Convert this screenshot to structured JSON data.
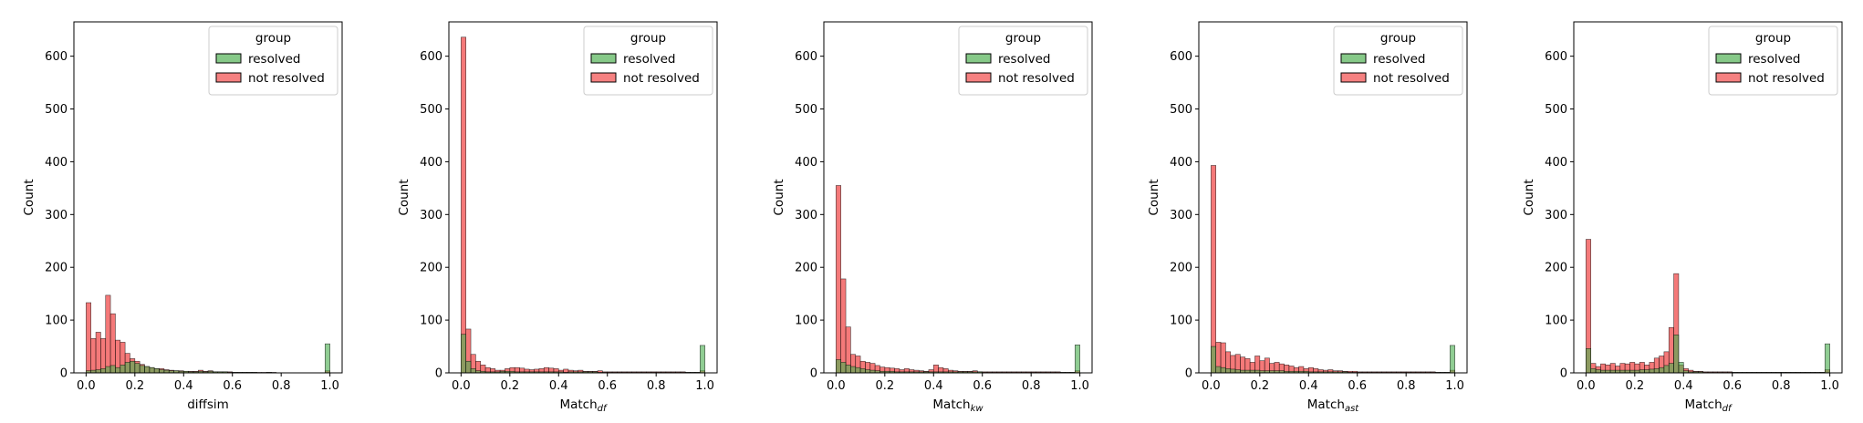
{
  "legend": {
    "title": "group",
    "entries": [
      {
        "label": "resolved",
        "color": "#4caf50"
      },
      {
        "label": "not resolved",
        "color": "#f04545"
      }
    ]
  },
  "colors": {
    "resolved": "#4caf50",
    "not_resolved": "#f04545",
    "overlap": "#7f6f1f",
    "edge": "#000000"
  },
  "chart_data": [
    {
      "type": "histogram",
      "xlabel": "diffsim",
      "ylabel": "Count",
      "xlim": [
        -0.05,
        1.05
      ],
      "ylim": [
        0,
        665
      ],
      "xticks": [
        "0.0",
        "0.2",
        "0.4",
        "0.6",
        "0.8",
        "1.0"
      ],
      "yticks": [
        "0",
        "100",
        "200",
        "300",
        "400",
        "500",
        "600"
      ],
      "bin_width": 0.02,
      "bin_start": 0.0,
      "series": [
        {
          "name": "resolved",
          "values": [
            4,
            5,
            6,
            8,
            12,
            14,
            10,
            15,
            20,
            22,
            18,
            14,
            12,
            10,
            8,
            6,
            5,
            4,
            4,
            3,
            3,
            2,
            2,
            3,
            2,
            3,
            2,
            2,
            2,
            1,
            1,
            1,
            1,
            1,
            1,
            0,
            0,
            1,
            0,
            0,
            0,
            0,
            0,
            0,
            0,
            0,
            0,
            0,
            0,
            55
          ]
        },
        {
          "name": "not resolved",
          "values": [
            133,
            65,
            77,
            65,
            147,
            112,
            62,
            58,
            37,
            27,
            22,
            16,
            12,
            10,
            8,
            8,
            6,
            5,
            4,
            4,
            3,
            3,
            3,
            5,
            3,
            4,
            2,
            2,
            2,
            2,
            1,
            1,
            1,
            1,
            1,
            1,
            1,
            1,
            1,
            0,
            0,
            0,
            0,
            0,
            0,
            0,
            0,
            0,
            0,
            4
          ]
        }
      ]
    },
    {
      "type": "histogram",
      "xlabel": "Match",
      "xlabel_sub": "df",
      "ylabel": "Count",
      "xlim": [
        -0.05,
        1.05
      ],
      "ylim": [
        0,
        665
      ],
      "xticks": [
        "0.0",
        "0.2",
        "0.4",
        "0.6",
        "0.8",
        "1.0"
      ],
      "yticks": [
        "0",
        "100",
        "200",
        "300",
        "400",
        "500",
        "600"
      ],
      "bin_width": 0.02,
      "bin_start": 0.0,
      "series": [
        {
          "name": "resolved",
          "values": [
            73,
            22,
            8,
            4,
            3,
            2,
            2,
            2,
            3,
            3,
            3,
            2,
            2,
            2,
            2,
            2,
            2,
            2,
            2,
            2,
            2,
            1,
            2,
            2,
            2,
            2,
            2,
            2,
            1,
            1,
            1,
            1,
            1,
            1,
            1,
            1,
            1,
            1,
            1,
            1,
            1,
            1,
            1,
            1,
            1,
            1,
            1,
            1,
            1,
            52
          ]
        },
        {
          "name": "not resolved",
          "values": [
            636,
            83,
            35,
            22,
            15,
            10,
            8,
            5,
            5,
            8,
            10,
            10,
            9,
            7,
            6,
            7,
            8,
            10,
            9,
            8,
            5,
            7,
            5,
            4,
            5,
            3,
            3,
            3,
            4,
            2,
            2,
            2,
            2,
            2,
            2,
            2,
            2,
            2,
            2,
            2,
            2,
            2,
            2,
            2,
            2,
            2,
            1,
            1,
            1,
            4
          ]
        }
      ]
    },
    {
      "type": "histogram",
      "xlabel": "Match",
      "xlabel_sub": "kw",
      "ylabel": "Count",
      "xlim": [
        -0.05,
        1.05
      ],
      "ylim": [
        0,
        665
      ],
      "xticks": [
        "0.0",
        "0.2",
        "0.4",
        "0.6",
        "0.8",
        "1.0"
      ],
      "yticks": [
        "0",
        "100",
        "200",
        "300",
        "400",
        "500",
        "600"
      ],
      "bin_width": 0.02,
      "bin_start": 0.0,
      "series": [
        {
          "name": "resolved",
          "values": [
            25,
            20,
            15,
            12,
            10,
            8,
            6,
            5,
            4,
            3,
            3,
            3,
            2,
            2,
            2,
            2,
            2,
            2,
            2,
            2,
            2,
            2,
            2,
            2,
            2,
            2,
            2,
            2,
            2,
            2,
            1,
            1,
            1,
            1,
            1,
            1,
            1,
            1,
            1,
            1,
            1,
            1,
            1,
            1,
            1,
            1,
            1,
            1,
            1,
            53
          ]
        },
        {
          "name": "not resolved",
          "values": [
            355,
            178,
            87,
            35,
            32,
            22,
            20,
            18,
            14,
            11,
            10,
            9,
            8,
            6,
            8,
            6,
            5,
            4,
            3,
            6,
            15,
            10,
            8,
            5,
            4,
            3,
            3,
            3,
            4,
            2,
            2,
            2,
            2,
            2,
            2,
            2,
            2,
            2,
            2,
            2,
            2,
            2,
            2,
            2,
            2,
            2,
            1,
            1,
            1,
            4
          ]
        }
      ]
    },
    {
      "type": "histogram",
      "xlabel": "Match",
      "xlabel_sub": "ast",
      "ylabel": "Count",
      "xlim": [
        -0.05,
        1.05
      ],
      "ylim": [
        0,
        665
      ],
      "xticks": [
        "0.0",
        "0.2",
        "0.4",
        "0.6",
        "0.8",
        "1.0"
      ],
      "yticks": [
        "0",
        "100",
        "200",
        "300",
        "400",
        "500",
        "600"
      ],
      "bin_width": 0.02,
      "bin_start": 0.0,
      "series": [
        {
          "name": "resolved",
          "values": [
            50,
            12,
            10,
            8,
            7,
            6,
            5,
            5,
            5,
            5,
            4,
            4,
            4,
            4,
            4,
            3,
            3,
            3,
            3,
            3,
            2,
            2,
            2,
            2,
            2,
            2,
            2,
            2,
            1,
            1,
            1,
            1,
            1,
            1,
            1,
            1,
            1,
            1,
            1,
            1,
            1,
            1,
            1,
            1,
            1,
            1,
            1,
            1,
            1,
            52
          ]
        },
        {
          "name": "not resolved",
          "values": [
            393,
            58,
            57,
            40,
            33,
            35,
            30,
            27,
            20,
            32,
            23,
            28,
            18,
            20,
            17,
            15,
            13,
            10,
            12,
            8,
            10,
            8,
            6,
            5,
            6,
            4,
            4,
            3,
            3,
            3,
            2,
            2,
            2,
            2,
            2,
            2,
            2,
            2,
            2,
            2,
            2,
            2,
            2,
            2,
            2,
            2,
            1,
            1,
            1,
            5
          ]
        }
      ]
    },
    {
      "type": "histogram",
      "xlabel": "Match",
      "xlabel_sub": "df",
      "ylabel": "Count",
      "xlim": [
        -0.05,
        1.05
      ],
      "ylim": [
        0,
        665
      ],
      "xticks": [
        "0.0",
        "0.2",
        "0.4",
        "0.6",
        "0.8",
        "1.0"
      ],
      "yticks": [
        "0",
        "100",
        "200",
        "300",
        "400",
        "500",
        "600"
      ],
      "bin_width": 0.02,
      "bin_start": 0.0,
      "series": [
        {
          "name": "resolved",
          "values": [
            46,
            8,
            6,
            5,
            5,
            5,
            5,
            5,
            5,
            5,
            5,
            6,
            6,
            7,
            8,
            10,
            14,
            18,
            72,
            20,
            4,
            2,
            2,
            2,
            1,
            1,
            1,
            1,
            1,
            1,
            1,
            1,
            1,
            1,
            1,
            1,
            1,
            1,
            1,
            1,
            1,
            1,
            1,
            1,
            1,
            1,
            1,
            1,
            1,
            55
          ]
        },
        {
          "name": "not resolved",
          "values": [
            253,
            18,
            12,
            17,
            15,
            18,
            13,
            18,
            17,
            20,
            17,
            20,
            15,
            20,
            28,
            32,
            40,
            86,
            188,
            15,
            8,
            5,
            3,
            3,
            2,
            2,
            2,
            2,
            2,
            2,
            1,
            1,
            1,
            1,
            1,
            1,
            1,
            1,
            1,
            1,
            1,
            1,
            1,
            1,
            1,
            1,
            1,
            1,
            1,
            6
          ]
        }
      ]
    }
  ]
}
